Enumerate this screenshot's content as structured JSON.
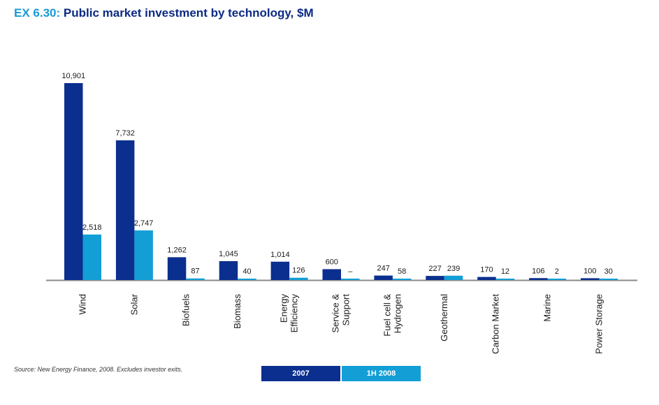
{
  "header": {
    "exhibit_number": "EX 6.30:",
    "title": "Public market investment by technology, $M"
  },
  "source_note": "Source: New Energy Finance, 2008.  Excludes investor exits.",
  "colors": {
    "series_2007": "#0b2f8f",
    "series_1h2008": "#139fd6",
    "axis": "#8a8a8a"
  },
  "chart_data": {
    "type": "bar",
    "title": "Public market investment by technology, $M",
    "xlabel": "",
    "ylabel": "",
    "categories": [
      [
        "Wind"
      ],
      [
        "Solar"
      ],
      [
        "Biofuels"
      ],
      [
        "Biomass"
      ],
      [
        "Energy",
        "Efficiency"
      ],
      [
        "Service &",
        "Support"
      ],
      [
        "Fuel cell &",
        "Hydrogen"
      ],
      [
        "Geothermal"
      ],
      [
        "Carbon Market"
      ],
      [
        "Marine"
      ],
      [
        "Power Storage"
      ]
    ],
    "series": [
      {
        "name": "2007",
        "values": [
          10901,
          7732,
          1262,
          1045,
          1014,
          600,
          247,
          227,
          170,
          106,
          100
        ],
        "labels": [
          "10,901",
          "7,732",
          "1,262",
          "1,045",
          "1,014",
          "600",
          "247",
          "227",
          "170",
          "106",
          "100"
        ]
      },
      {
        "name": "1H 2008",
        "values": [
          2518,
          2747,
          87,
          40,
          126,
          0,
          58,
          239,
          12,
          2,
          30
        ],
        "labels": [
          "2,518",
          "2,747",
          "87",
          "40",
          "126",
          "–",
          "58",
          "239",
          "12",
          "2",
          "30"
        ]
      }
    ],
    "ylim": [
      0,
      10901
    ],
    "grid": false,
    "legend_position": "bottom-center"
  }
}
